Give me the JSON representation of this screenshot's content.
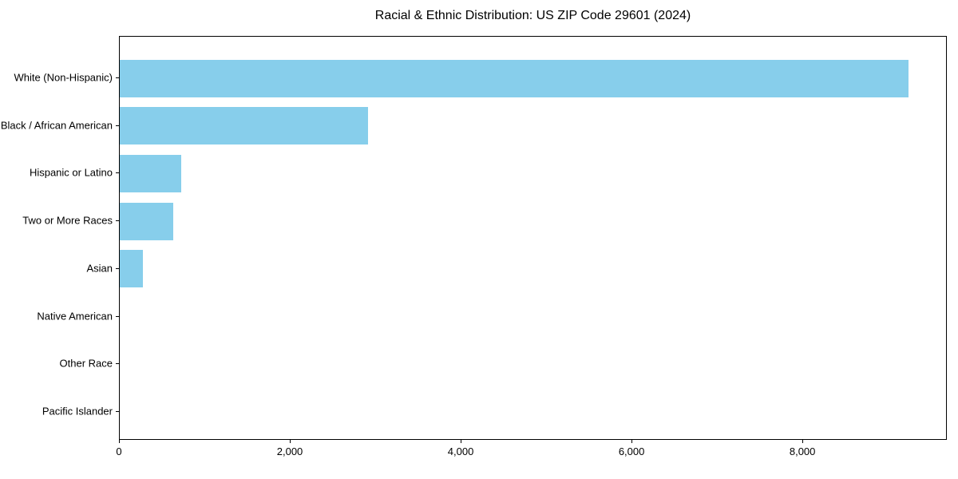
{
  "chart_data": {
    "type": "bar",
    "orientation": "horizontal",
    "title": "Racial & Ethnic Distribution: US ZIP Code 29601 (2024)",
    "categories": [
      "White (Non-Hispanic)",
      "Black / African American",
      "Hispanic or Latino",
      "Two or More Races",
      "Asian",
      "Native American",
      "Other Race",
      "Pacific Islander"
    ],
    "values": [
      9230,
      2910,
      720,
      630,
      270,
      0,
      0,
      0
    ],
    "xlabel": "",
    "ylabel": "",
    "xlim": [
      0,
      9690
    ],
    "x_ticks": [
      {
        "value": 0,
        "label": "0"
      },
      {
        "value": 2000,
        "label": "2,000"
      },
      {
        "value": 4000,
        "label": "4,000"
      },
      {
        "value": 6000,
        "label": "6,000"
      },
      {
        "value": 8000,
        "label": "8,000"
      }
    ],
    "bar_color": "#87CEEB",
    "grid": false,
    "legend": null,
    "background": "#ffffff",
    "spine_color": "#000000",
    "text_color": "#000000"
  }
}
